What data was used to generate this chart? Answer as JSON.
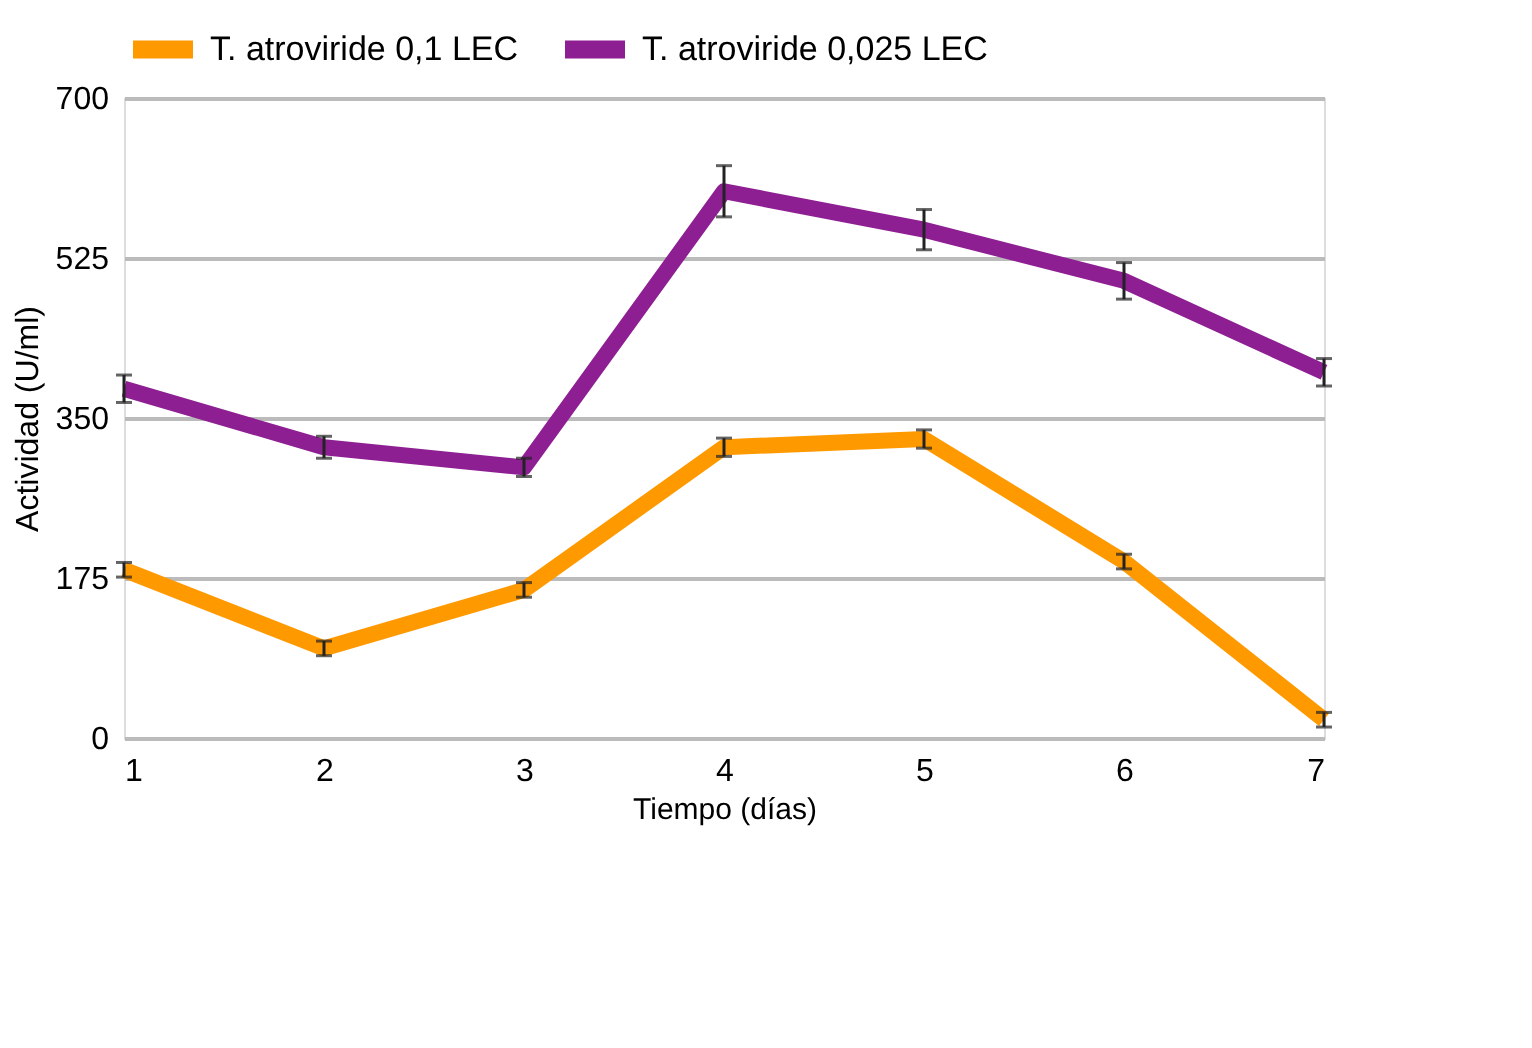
{
  "chart_data": {
    "type": "line",
    "xlabel": "Tiempo (días)",
    "ylabel": "Actividad (U/ml)",
    "x": [
      1,
      2,
      3,
      4,
      5,
      6,
      7
    ],
    "series": [
      {
        "name": "T. atroviride 0,1 LEC",
        "color": "#ff9900",
        "values": [
          184,
          98,
          162,
          318,
          327,
          193,
          20
        ],
        "errors": [
          8,
          8,
          8,
          10,
          10,
          8,
          8
        ]
      },
      {
        "name": "T. atroviride 0,025 LEC",
        "color": "#8e1f92",
        "values": [
          382,
          318,
          296,
          598,
          556,
          500,
          400
        ],
        "errors": [
          15,
          12,
          10,
          28,
          22,
          20,
          15
        ]
      }
    ],
    "xlim": [
      1,
      7
    ],
    "xticks": [
      1,
      2,
      3,
      4,
      5,
      6,
      7
    ],
    "ylim": [
      0,
      700
    ],
    "yticks": [
      0,
      175,
      350,
      525,
      700
    ],
    "grid": "y",
    "legend": "top",
    "marker": "none",
    "line_style": "solid"
  }
}
